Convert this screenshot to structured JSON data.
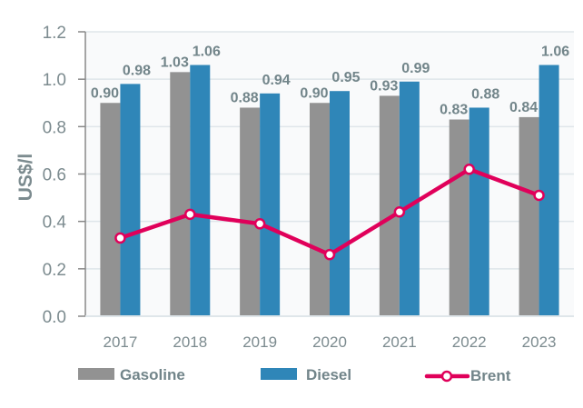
{
  "chart_data": {
    "type": "bar",
    "categories": [
      "2017",
      "2018",
      "2019",
      "2020",
      "2021",
      "2022",
      "2023"
    ],
    "ylabel": "US$/l",
    "ylim": [
      0,
      1.2
    ],
    "yticks": [
      "0.0",
      "0.2",
      "0.4",
      "0.6",
      "0.8",
      "1.0",
      "1.2"
    ],
    "grid": true,
    "legend_position": "bottom",
    "series": [
      {
        "name": "Gasoline",
        "type": "bar",
        "color": "#929292",
        "values": [
          0.9,
          1.03,
          0.88,
          0.9,
          0.93,
          0.83,
          0.84
        ],
        "labels": [
          "0.90",
          "1.03",
          "0.88",
          "0.90",
          "0.93",
          "0.83",
          "0.84"
        ]
      },
      {
        "name": "Diesel",
        "type": "bar",
        "color": "#2f86b8",
        "values": [
          0.98,
          1.06,
          0.94,
          0.95,
          0.99,
          0.88,
          1.06
        ],
        "labels": [
          "0.98",
          "1.06",
          "0.94",
          "0.95",
          "0.99",
          "0.88",
          "1.06"
        ]
      },
      {
        "name": "Brent",
        "type": "line",
        "color": "#e0005a",
        "values": [
          0.33,
          0.43,
          0.39,
          0.26,
          0.44,
          0.62,
          0.51
        ]
      }
    ]
  }
}
